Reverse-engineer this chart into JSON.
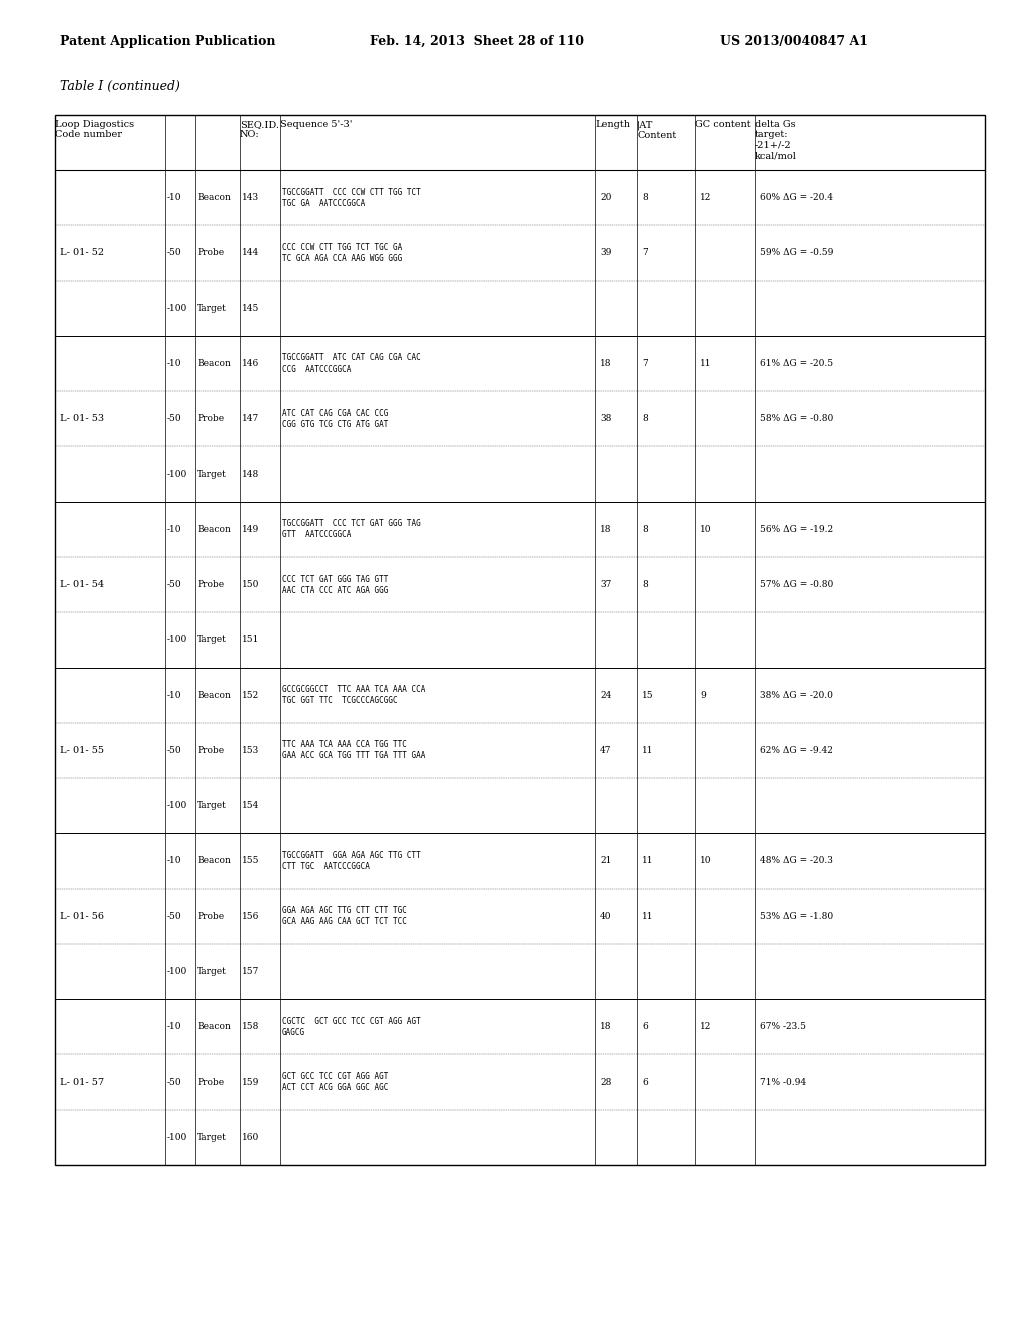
{
  "header_line1": "Patent Application Publication",
  "header_line2": "Feb. 14, 2013  Sheet 28 of 110",
  "header_line3": "US 2013/0040847 A1",
  "table_title": "Table I (continued)",
  "col_headers": [
    "Loop Diagostics\nCode number",
    "",
    "SEQ.ID.\nNO:",
    "Sequence 5'-3'",
    "",
    "Length",
    "AT\nContent",
    "GC content",
    "delta Gs\ntarget:\n-21+/-2\nkcal/mol"
  ],
  "rows": [
    {
      "code": "L- 01- 52",
      "temps": [
        "-10",
        "-50",
        "-100"
      ],
      "types": [
        "Beacon",
        "Probe",
        "Target"
      ],
      "seqids": [
        "143",
        "144",
        "145"
      ],
      "sequences": [
        "TGCCGGATT  CCC CCW CTT TGG TCT\nTGC GA  AATCCCGGCA",
        "CCC CCW CTT TGG TCT TGC GA\nTC GCA AGA CCA AAG WGG GGG",
        ""
      ],
      "lengths": [
        "20",
        "39",
        ""
      ],
      "at_contents": [
        "8",
        "7",
        ""
      ],
      "gc_contents": [
        "12",
        "",
        ""
      ],
      "delta_gs": [
        "60% ΔG = -20.4",
        "59% ΔG = -0.59",
        ""
      ]
    },
    {
      "code": "L- 01- 53",
      "temps": [
        "-10",
        "-50",
        "-100"
      ],
      "types": [
        "Beacon",
        "Probe",
        "Target"
      ],
      "seqids": [
        "146",
        "147",
        "148"
      ],
      "sequences": [
        "TGCCGGATT  ATC CAT CAG CGA CAC\nCCG  AATCCCGGCA",
        "ATC CAT CAG CGA CAC CCG\nCGG GTG TCG CTG ATG GAT",
        ""
      ],
      "lengths": [
        "18",
        "38",
        ""
      ],
      "at_contents": [
        "7",
        "8",
        ""
      ],
      "gc_contents": [
        "11",
        "",
        ""
      ],
      "delta_gs": [
        "61% ΔG = -20.5",
        "58% ΔG = -0.80",
        ""
      ]
    },
    {
      "code": "L- 01- 54",
      "temps": [
        "-10",
        "-50",
        "-100"
      ],
      "types": [
        "Beacon",
        "Probe",
        "Target"
      ],
      "seqids": [
        "149",
        "150",
        "151"
      ],
      "sequences": [
        "TGCCGGATT  CCC TCT GAT GGG TAG\nGTT  AATCCCGGCA",
        "CCC TCT GAT GGG TAG GTT\nAAC CTA CCC ATC AGA GGG",
        ""
      ],
      "lengths": [
        "18",
        "37",
        ""
      ],
      "at_contents": [
        "8",
        "8",
        ""
      ],
      "gc_contents": [
        "10",
        "",
        ""
      ],
      "delta_gs": [
        "56% ΔG = -19.2",
        "57% ΔG = -0.80",
        ""
      ]
    },
    {
      "code": "L- 01- 55",
      "temps": [
        "-10",
        "-50",
        "-100"
      ],
      "types": [
        "Beacon",
        "Probe",
        "Target"
      ],
      "seqids": [
        "152",
        "153",
        "154"
      ],
      "sequences": [
        "GCCGCGGCCT  TTC AAA TCA AAA CCA\nTGC GGT TTC  TCGCCCAGCGGC",
        "TTC AAA TCA AAA CCA TGG TTC\nGAA ACC GCA TGG TTT TGA TTT GAA",
        ""
      ],
      "lengths": [
        "24",
        "47",
        ""
      ],
      "at_contents": [
        "15",
        "11",
        ""
      ],
      "gc_contents": [
        "9",
        "",
        ""
      ],
      "delta_gs": [
        "38% ΔG = -20.0",
        "62% ΔG = -9.42",
        ""
      ]
    },
    {
      "code": "L- 01- 56",
      "temps": [
        "-10",
        "-50",
        "-100"
      ],
      "types": [
        "Beacon",
        "Probe",
        "Target"
      ],
      "seqids": [
        "155",
        "156",
        "157"
      ],
      "sequences": [
        "TGCCGGATT  GGA AGA AGC TTG CTT\nCTT TGC  AATCCCGGCA",
        "GGA AGA AGC TTG CTT CTT TGC\nGCA AAG AAG CAA GCT TCT TCC",
        ""
      ],
      "lengths": [
        "21",
        "40",
        ""
      ],
      "at_contents": [
        "11",
        "11",
        ""
      ],
      "gc_contents": [
        "10",
        "",
        ""
      ],
      "delta_gs": [
        "48% ΔG = -20.3",
        "53% ΔG = -1.80",
        ""
      ]
    },
    {
      "code": "L- 01- 57",
      "temps": [
        "-10",
        "-50",
        "-100"
      ],
      "types": [
        "Beacon",
        "Probe",
        "Target"
      ],
      "seqids": [
        "158",
        "159",
        "160"
      ],
      "sequences": [
        "CGCTC  GCT GCC TCC CGT AGG AGT\nGAGCG",
        "GCT GCC TCC CGT AGG AGT\nACT CCT ACG GGA GGC AGC",
        ""
      ],
      "lengths": [
        "18",
        "28",
        ""
      ],
      "at_contents": [
        "6",
        "6",
        ""
      ],
      "gc_contents": [
        "12",
        "",
        ""
      ],
      "delta_gs": [
        "67% -23.5",
        "71% -0.94",
        ""
      ]
    }
  ]
}
